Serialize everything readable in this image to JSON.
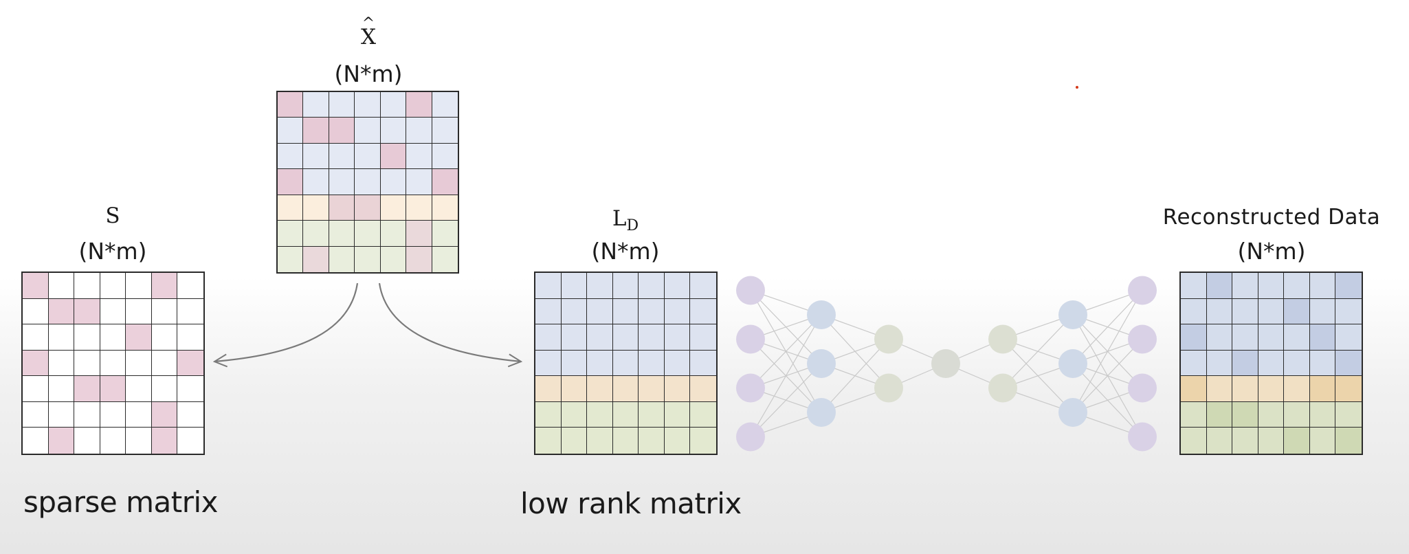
{
  "matrices": {
    "x_hat": {
      "title": "X",
      "title_mark": "^",
      "dims": "(N*m)",
      "cells": [
        [
          "#e7cad6",
          "#e4e9f4",
          "#e4e9f4",
          "#e4e9f4",
          "#e4e9f4",
          "#e7cad6",
          "#e4e9f4"
        ],
        [
          "#e4e9f4",
          "#e7cad6",
          "#e7cad6",
          "#e4e9f4",
          "#e4e9f4",
          "#e4e9f4",
          "#e4e9f4"
        ],
        [
          "#e4e9f4",
          "#e4e9f4",
          "#e4e9f4",
          "#e4e9f4",
          "#e7cad6",
          "#e4e9f4",
          "#e4e9f4"
        ],
        [
          "#e7cad6",
          "#e4e9f4",
          "#e4e9f4",
          "#e4e9f4",
          "#e4e9f4",
          "#e4e9f4",
          "#e7cad6"
        ],
        [
          "#fbeedd",
          "#fbeedd",
          "#ead3d6",
          "#ead3d6",
          "#fbeedd",
          "#fbeedd",
          "#fbeedd"
        ],
        [
          "#e9eedd",
          "#e9eedd",
          "#e9eedd",
          "#e9eedd",
          "#e9eedd",
          "#ead9db",
          "#e9eedd"
        ],
        [
          "#e9eedd",
          "#ead9db",
          "#e9eedd",
          "#e9eedd",
          "#e9eedd",
          "#ead9db",
          "#e9eedd"
        ]
      ]
    },
    "s": {
      "title": "S",
      "dims": "(N*m)",
      "caption": "sparse matrix",
      "cells": [
        [
          "#ebd0db",
          "#ffffff",
          "#ffffff",
          "#ffffff",
          "#ffffff",
          "#ebd0db",
          "#ffffff"
        ],
        [
          "#ffffff",
          "#ebd0db",
          "#ebd0db",
          "#ffffff",
          "#ffffff",
          "#ffffff",
          "#ffffff"
        ],
        [
          "#ffffff",
          "#ffffff",
          "#ffffff",
          "#ffffff",
          "#ebd0db",
          "#ffffff",
          "#ffffff"
        ],
        [
          "#ebd0db",
          "#ffffff",
          "#ffffff",
          "#ffffff",
          "#ffffff",
          "#ffffff",
          "#ebd0db"
        ],
        [
          "#ffffff",
          "#ffffff",
          "#ebd0db",
          "#ebd0db",
          "#ffffff",
          "#ffffff",
          "#ffffff"
        ],
        [
          "#ffffff",
          "#ffffff",
          "#ffffff",
          "#ffffff",
          "#ffffff",
          "#ebd0db",
          "#ffffff"
        ],
        [
          "#ffffff",
          "#ebd0db",
          "#ffffff",
          "#ffffff",
          "#ffffff",
          "#ebd0db",
          "#ffffff"
        ]
      ]
    },
    "l_d": {
      "title": "L",
      "subscript": "D",
      "dims": "(N*m)",
      "caption": "low rank matrix",
      "cells": [
        [
          "#dde3f0",
          "#dde3f0",
          "#dde3f0",
          "#dde3f0",
          "#dde3f0",
          "#dde3f0",
          "#dde3f0"
        ],
        [
          "#dde3f0",
          "#dde3f0",
          "#dde3f0",
          "#dde3f0",
          "#dde3f0",
          "#dde3f0",
          "#dde3f0"
        ],
        [
          "#dde3f0",
          "#dde3f0",
          "#dde3f0",
          "#dde3f0",
          "#dde3f0",
          "#dde3f0",
          "#dde3f0"
        ],
        [
          "#dde3f0",
          "#dde3f0",
          "#dde3f0",
          "#dde3f0",
          "#dde3f0",
          "#dde3f0",
          "#dde3f0"
        ],
        [
          "#f3e3cc",
          "#f3e3cc",
          "#f3e3cc",
          "#f3e3cc",
          "#f3e3cc",
          "#f3e3cc",
          "#f3e3cc"
        ],
        [
          "#e3e9d0",
          "#e3e9d0",
          "#e3e9d0",
          "#e3e9d0",
          "#e3e9d0",
          "#e3e9d0",
          "#e3e9d0"
        ],
        [
          "#e3e9d0",
          "#e3e9d0",
          "#e3e9d0",
          "#e3e9d0",
          "#e3e9d0",
          "#e3e9d0",
          "#e3e9d0"
        ]
      ]
    },
    "reconstructed": {
      "title": "Reconstructed Data",
      "dims": "(N*m)",
      "cells": [
        [
          "#d5ddec",
          "#c3cde3",
          "#d5ddec",
          "#d5ddec",
          "#d5ddec",
          "#d5ddec",
          "#c3cde3"
        ],
        [
          "#d5ddec",
          "#d5ddec",
          "#d5ddec",
          "#d5ddec",
          "#c3cde3",
          "#d5ddec",
          "#d5ddec"
        ],
        [
          "#c3cde3",
          "#d5ddec",
          "#d5ddec",
          "#d5ddec",
          "#d5ddec",
          "#c3cde3",
          "#d5ddec"
        ],
        [
          "#d5ddec",
          "#d5ddec",
          "#c3cde3",
          "#d5ddec",
          "#d5ddec",
          "#d5ddec",
          "#c3cde3"
        ],
        [
          "#ecd4ab",
          "#f1e0c4",
          "#f1e0c4",
          "#f1e0c4",
          "#f1e0c4",
          "#ecd4ab",
          "#ecd4ab"
        ],
        [
          "#dbe2c6",
          "#cfd9b4",
          "#cfd9b4",
          "#dbe2c6",
          "#dbe2c6",
          "#dbe2c6",
          "#dbe2c6"
        ],
        [
          "#dbe2c6",
          "#dbe2c6",
          "#dbe2c6",
          "#dbe2c6",
          "#cfd9b4",
          "#dbe2c6",
          "#cfd9b4"
        ]
      ]
    }
  },
  "network": {
    "layers": [
      {
        "count": 4,
        "color": "#d9d1e6"
      },
      {
        "count": 3,
        "color": "#cfd9e8"
      },
      {
        "count": 2,
        "color": "#dcdfd2"
      },
      {
        "count": 1,
        "color": "#d9dbd4"
      },
      {
        "count": 2,
        "color": "#dcdfd2"
      },
      {
        "count": 3,
        "color": "#cfd9e8"
      },
      {
        "count": 4,
        "color": "#d9d1e6"
      }
    ],
    "edge_color": "#c9c9c9"
  },
  "colors": {
    "grid_line": "#2a2a2a",
    "arrow": "#7a7a7a",
    "text": "#1a1a1a",
    "accent_dot": "#d43a1a"
  }
}
